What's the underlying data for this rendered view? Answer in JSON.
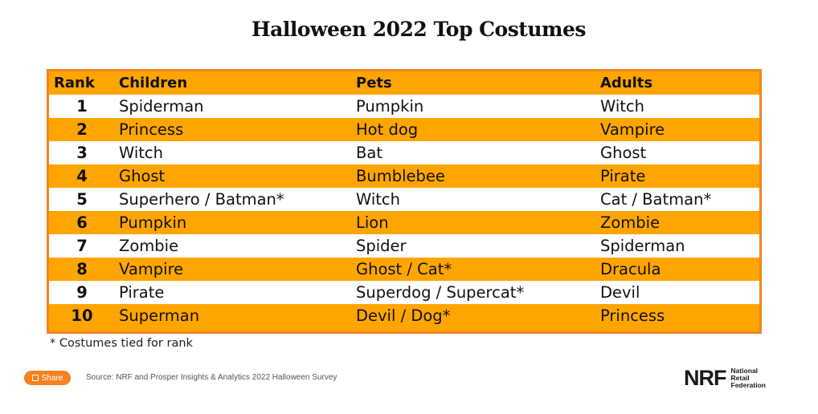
{
  "chart_data": {
    "type": "table",
    "title": "Halloween 2022 Top Costumes",
    "columns": [
      "Rank",
      "Children",
      "Pets",
      "Adults"
    ],
    "rows": [
      [
        "1",
        "Spiderman",
        "Pumpkin",
        "Witch"
      ],
      [
        "2",
        "Princess",
        "Hot dog",
        "Vampire"
      ],
      [
        "3",
        "Witch",
        "Bat",
        "Ghost"
      ],
      [
        "4",
        "Ghost",
        "Bumblebee",
        "Pirate"
      ],
      [
        "5",
        "Superhero / Batman*",
        "Witch",
        "Cat / Batman*"
      ],
      [
        "6",
        "Pumpkin",
        "Lion",
        "Zombie"
      ],
      [
        "7",
        "Zombie",
        "Spider",
        "Spiderman"
      ],
      [
        "8",
        "Vampire",
        "Ghost / Cat*",
        "Dracula"
      ],
      [
        "9",
        "Pirate",
        "Superdog / Supercat*",
        "Devil"
      ],
      [
        "10",
        "Superman",
        "Devil / Dog*",
        "Princess"
      ]
    ],
    "footnote": "* Costumes tied for rank",
    "colors": {
      "accent": "#ffa500",
      "border": "#f5831f"
    }
  },
  "share_label": "Share",
  "source": "Source: NRF and Prosper Insights & Analytics 2022 Halloween Survey",
  "logo": {
    "mark": "NRF",
    "lines": [
      "National",
      "Retail",
      "Federation"
    ]
  }
}
